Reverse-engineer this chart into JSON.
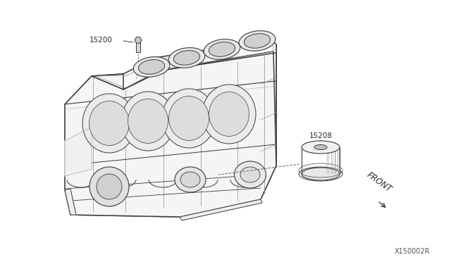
{
  "bg_color": "#ffffff",
  "line_color": "#3a3a3a",
  "label_color": "#2a2a2a",
  "fig_width": 6.4,
  "fig_height": 3.72,
  "dpi": 100,
  "part_number": "X150002R",
  "label_15200": "15200",
  "label_15208": "15208",
  "front_label": "FRONT"
}
